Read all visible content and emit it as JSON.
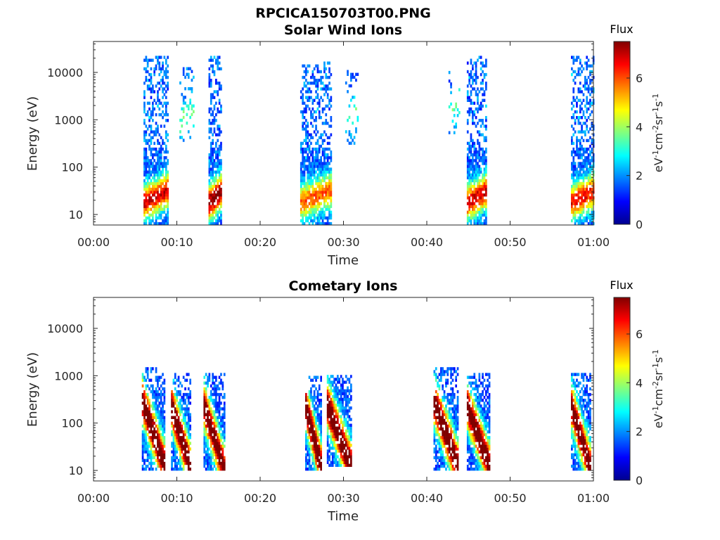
{
  "figure_title": "RPCICA150703T00.PNG",
  "colors": {
    "axis": "#262626",
    "background": "#ffffff",
    "colormap": "jet"
  },
  "chart_data": [
    {
      "type": "heatmap",
      "title": "Solar Wind Ions",
      "xlabel": "Time",
      "ylabel": "Energy (eV)",
      "x_ticks": [
        "00:00",
        "00:10",
        "00:20",
        "00:30",
        "00:40",
        "00:50",
        "01:00"
      ],
      "x_range_min": [
        0,
        60
      ],
      "y_scale": "log",
      "y_ticks": [
        "10",
        "100",
        "1000",
        "10000"
      ],
      "y_tick_values": [
        10,
        100,
        1000,
        10000
      ],
      "ylim": [
        6,
        45000
      ],
      "colorbar": {
        "title": "Flux",
        "label": "eV-1cm-2sr-1s-1",
        "ticks": [
          "0",
          "2",
          "4",
          "6"
        ],
        "range": [
          0,
          7.5
        ]
      },
      "blobs": [
        {
          "name": "sw-1",
          "t": [
            6.0,
            8.8
          ],
          "e": [
            6,
            20000
          ],
          "peak": 5.3,
          "dense": true
        },
        {
          "name": "sw-2",
          "t": [
            10.3,
            12.0
          ],
          "e": [
            300,
            12000
          ],
          "peak": 2.0,
          "dense": false
        },
        {
          "name": "sw-3",
          "t": [
            13.8,
            15.3
          ],
          "e": [
            6,
            20000
          ],
          "peak": 6.0,
          "dense": true
        },
        {
          "name": "sw-4",
          "t": [
            24.8,
            28.4
          ],
          "e": [
            6,
            16000
          ],
          "peak": 4.3,
          "dense": true
        },
        {
          "name": "sw-5",
          "t": [
            30.2,
            31.6
          ],
          "e": [
            300,
            10000
          ],
          "peak": 1.8,
          "dense": false
        },
        {
          "name": "sw-6",
          "t": [
            42.6,
            44.0
          ],
          "e": [
            500,
            10000
          ],
          "peak": 2.0,
          "dense": false
        },
        {
          "name": "sw-7",
          "t": [
            44.8,
            47.2
          ],
          "e": [
            6,
            20000
          ],
          "peak": 5.3,
          "dense": true
        },
        {
          "name": "sw-8",
          "t": [
            57.3,
            60.1
          ],
          "e": [
            6,
            20000
          ],
          "peak": 5.0,
          "dense": true
        }
      ]
    },
    {
      "type": "heatmap",
      "title": "Cometary Ions",
      "xlabel": "Time",
      "ylabel": "Energy (eV)",
      "x_ticks": [
        "00:00",
        "00:10",
        "00:20",
        "00:30",
        "00:40",
        "00:50",
        "01:00"
      ],
      "x_range_min": [
        0,
        60
      ],
      "y_scale": "log",
      "y_ticks": [
        "10",
        "100",
        "1000",
        "10000"
      ],
      "y_tick_values": [
        10,
        100,
        1000,
        10000
      ],
      "ylim": [
        6,
        45000
      ],
      "colorbar": {
        "title": "Flux",
        "label": "eV-1cm-2sr-1s-1",
        "ticks": [
          "0",
          "2",
          "4",
          "6"
        ],
        "range": [
          0,
          7.5
        ]
      },
      "blobs": [
        {
          "name": "ci-1",
          "t": [
            5.8,
            8.6
          ],
          "e": [
            10,
            1500
          ],
          "peak": 7.0,
          "dense": true
        },
        {
          "name": "ci-2",
          "t": [
            9.3,
            11.6
          ],
          "e": [
            10,
            1000
          ],
          "peak": 7.2,
          "dense": true
        },
        {
          "name": "ci-3",
          "t": [
            13.2,
            15.6
          ],
          "e": [
            10,
            1000
          ],
          "peak": 6.8,
          "dense": true
        },
        {
          "name": "ci-4",
          "t": [
            25.4,
            27.3
          ],
          "e": [
            10,
            1000
          ],
          "peak": 7.0,
          "dense": true
        },
        {
          "name": "ci-5",
          "t": [
            28.0,
            30.8
          ],
          "e": [
            12,
            1000
          ],
          "peak": 7.3,
          "dense": true
        },
        {
          "name": "ci-6",
          "t": [
            40.8,
            43.8
          ],
          "e": [
            10,
            1500
          ],
          "peak": 7.3,
          "dense": true
        },
        {
          "name": "ci-7",
          "t": [
            44.8,
            47.6
          ],
          "e": [
            10,
            1000
          ],
          "peak": 6.9,
          "dense": true
        },
        {
          "name": "ci-8",
          "t": [
            57.3,
            59.6
          ],
          "e": [
            10,
            1000
          ],
          "peak": 6.8,
          "dense": true
        }
      ]
    }
  ]
}
